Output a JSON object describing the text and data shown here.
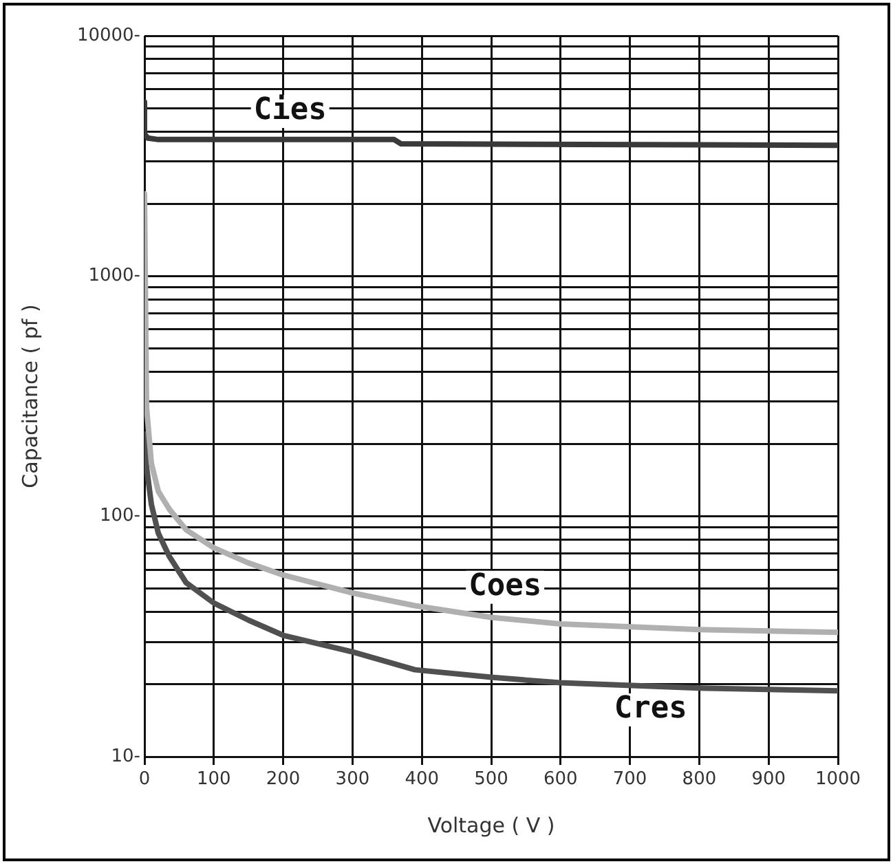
{
  "chart_data": {
    "type": "line",
    "xlabel": "Voltage ( V )",
    "ylabel": "Capacitance ( pf )",
    "log": "y",
    "grid": true,
    "marker": "none",
    "line_style": "solid",
    "xlim": [
      0,
      1000
    ],
    "xticks": [
      0,
      100,
      200,
      300,
      400,
      500,
      600,
      700,
      800,
      900,
      1000
    ],
    "ylim": [
      10,
      10000
    ],
    "yticks": [
      {
        "value": 10,
        "label": "10-"
      },
      {
        "value": 20,
        "label": null
      },
      {
        "value": 30,
        "label": null
      },
      {
        "value": 40,
        "label": null
      },
      {
        "value": 50,
        "label": null
      },
      {
        "value": 60,
        "label": null
      },
      {
        "value": 70,
        "label": null
      },
      {
        "value": 80,
        "label": null
      },
      {
        "value": 90,
        "label": null
      },
      {
        "value": 100,
        "label": "100-"
      },
      {
        "value": 200,
        "label": null
      },
      {
        "value": 300,
        "label": null
      },
      {
        "value": 400,
        "label": null
      },
      {
        "value": 500,
        "label": null
      },
      {
        "value": 600,
        "label": null
      },
      {
        "value": 700,
        "label": null
      },
      {
        "value": 800,
        "label": null
      },
      {
        "value": 900,
        "label": null
      },
      {
        "value": 1000,
        "label": "1000-"
      },
      {
        "value": 2000,
        "label": null
      },
      {
        "value": 3000,
        "label": null
      },
      {
        "value": 4000,
        "label": null
      },
      {
        "value": 5000,
        "label": null
      },
      {
        "value": 6000,
        "label": null
      },
      {
        "value": 7000,
        "label": null
      },
      {
        "value": 8000,
        "label": null
      },
      {
        "value": 9000,
        "label": null
      },
      {
        "value": 10000,
        "label": "10000-"
      }
    ],
    "series": [
      {
        "name": "Cies",
        "color": "#3a3a3a",
        "x": [
          0,
          0,
          5,
          20,
          360,
          370,
          1000
        ],
        "values": [
          5300,
          3900,
          3750,
          3700,
          3700,
          3550,
          3500
        ]
      },
      {
        "name": "Coes",
        "color": "#b0b0b0",
        "x": [
          0,
          3,
          10,
          20,
          36,
          60,
          100,
          150,
          200,
          300,
          390,
          500,
          600,
          800,
          1000
        ],
        "values": [
          2200,
          284,
          166,
          127,
          107,
          88,
          74,
          64,
          57,
          48,
          42.5,
          38,
          35.7,
          33.8,
          32.9
        ]
      },
      {
        "name": "Cres",
        "color": "#505050",
        "x": [
          0,
          3,
          10,
          20,
          36,
          60,
          100,
          150,
          200,
          300,
          390,
          500,
          600,
          800,
          1000
        ],
        "values": [
          220,
          160,
          112,
          85,
          68,
          53,
          43.6,
          37,
          32,
          27.3,
          23,
          21.4,
          20.3,
          19.3,
          18.8
        ]
      }
    ]
  }
}
